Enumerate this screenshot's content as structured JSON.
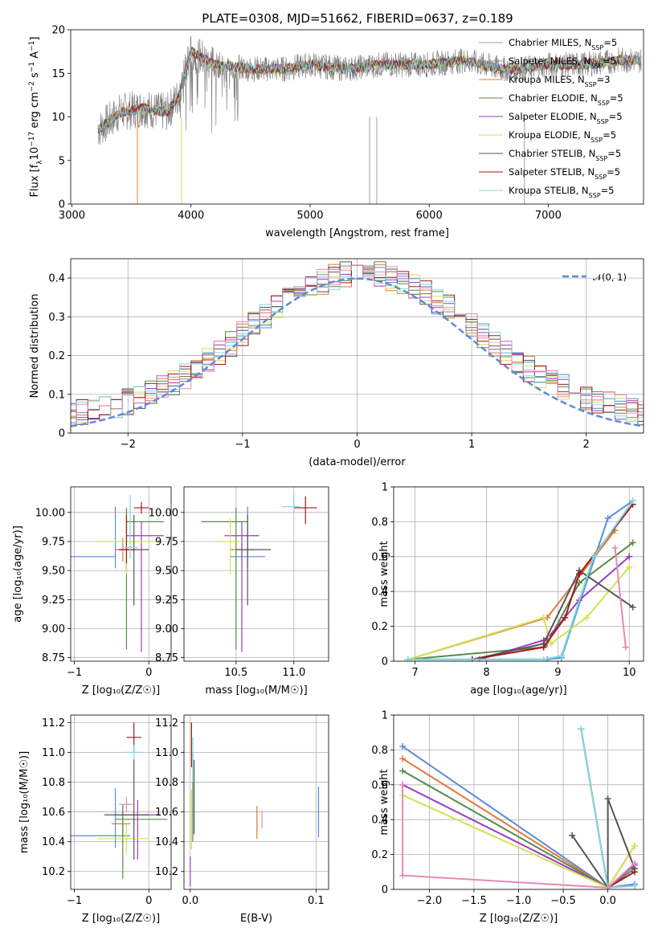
{
  "title": "PLATE=0308, MJD=51662, FIBERID=0637, z=0.189",
  "chart_data": [
    {
      "id": "spectrum",
      "type": "line",
      "xlabel": "wavelength [Angstrom, rest frame]",
      "ylabel_parts": [
        "Flux [f",
        "λ",
        "10",
        "−17",
        " erg cm",
        "−2",
        " s",
        "−1",
        " A",
        "−1",
        "]"
      ],
      "xlim": [
        2990,
        7800
      ],
      "ylim": [
        0,
        20
      ],
      "xticks": [
        3000,
        4000,
        5000,
        6000,
        7000
      ],
      "yticks": [
        0,
        5,
        10,
        15,
        20
      ],
      "grid": false,
      "legend_position": "right",
      "series": [
        {
          "name": "Chabrier MILES, N",
          "sub": "SSP",
          "suffix": "=5",
          "color": "#a0a0a0"
        },
        {
          "name": "Salpeter MILES, N",
          "sub": "SSP",
          "suffix": "=5",
          "color": "#8a8a8a"
        },
        {
          "name": "Kroupa MILES, N",
          "sub": "SSP",
          "suffix": "=3",
          "color": "#e07b39"
        },
        {
          "name": "Chabrier ELODIE, N",
          "sub": "SSP",
          "suffix": "=5",
          "color": "#5a8a4a"
        },
        {
          "name": "Salpeter ELODIE, N",
          "sub": "SSP",
          "suffix": "=5",
          "color": "#9b3dbf"
        },
        {
          "name": "Kroupa ELODIE, N",
          "sub": "SSP",
          "suffix": "=5",
          "color": "#d4e157"
        },
        {
          "name": "Chabrier STELIB, N",
          "sub": "SSP",
          "suffix": "=5",
          "color": "#555555"
        },
        {
          "name": "Salpeter STELIB, N",
          "sub": "SSP",
          "suffix": "=5",
          "color": "#a01a1a"
        },
        {
          "name": "Kroupa STELIB, N",
          "sub": "SSP",
          "suffix": "=5",
          "color": "#80d8e0"
        }
      ],
      "data_continuum": {
        "x": [
          3220,
          3400,
          3600,
          3800,
          3900,
          4000,
          4200,
          4500,
          4800,
          5000,
          5300,
          5600,
          6000,
          6300,
          6600,
          6800,
          7000,
          7300,
          7600,
          7780
        ],
        "y": [
          8.5,
          10.5,
          11.0,
          10.5,
          12.5,
          17.5,
          16.0,
          15.5,
          15.5,
          16.0,
          15.5,
          16.0,
          16.0,
          16.5,
          15.5,
          15.5,
          16.0,
          16.0,
          16.5,
          16.5
        ]
      }
    },
    {
      "id": "residuals",
      "type": "histogram",
      "xlabel": "(data-model)/error",
      "ylabel": "Normed distribution",
      "xlim": [
        -2.5,
        2.5
      ],
      "ylim": [
        0,
        0.45
      ],
      "xticks": [
        -2,
        -1,
        0,
        1,
        2
      ],
      "xtick_labels": [
        "−2",
        "−1",
        "0",
        "1",
        "2"
      ],
      "yticks": [
        0.0,
        0.1,
        0.2,
        0.3,
        0.4
      ],
      "grid": true,
      "legend": [
        {
          "name": "𝒩(0, 1)",
          "color": "#5b8bd9",
          "dashed": true
        }
      ],
      "legend_position": "top-right",
      "gaussian": {
        "mean": 0,
        "sigma": 1
      }
    },
    {
      "id": "age-vs-Z",
      "type": "errorbar",
      "xlabel": "Z [log₁₀(Z/Z☉)]",
      "ylabel": "age  [log₁₀(age/yr)]",
      "xlim": [
        -1.05,
        0.3
      ],
      "ylim": [
        8.72,
        10.22
      ],
      "xticks": [
        -1,
        0
      ],
      "xtick_labels": [
        "−1",
        "0"
      ],
      "yticks": [
        8.75,
        9.0,
        9.25,
        9.5,
        9.75,
        10.0
      ],
      "ytick_labels": [
        "8.75",
        "9.00",
        "9.25",
        "9.50",
        "9.75",
        "10.00"
      ],
      "grid": true,
      "points": [
        {
          "x": -0.45,
          "xerr": [
            0.6,
            0.0
          ],
          "y": 9.62,
          "yerr": [
            0.1,
            0.43
          ],
          "color": "#5b8bd9"
        },
        {
          "x": -0.35,
          "xerr": [
            0.1,
            0.1
          ],
          "y": 9.68,
          "yerr": [
            0.1,
            0.1
          ],
          "color": "#e07b39"
        },
        {
          "x": -0.3,
          "xerr": [
            0.0,
            0.5
          ],
          "y": 9.92,
          "yerr": [
            1.1,
            0.12
          ],
          "color": "#5a8a4a"
        },
        {
          "x": -0.1,
          "xerr": [
            0.2,
            0.3
          ],
          "y": 9.8,
          "yerr": [
            1.0,
            0.12
          ],
          "color": "#9b3dbf"
        },
        {
          "x": -0.3,
          "xerr": [
            0.4,
            0.4
          ],
          "y": 9.75,
          "yerr": [
            0.28,
            0.2
          ],
          "color": "#d4e157"
        },
        {
          "x": -0.2,
          "xerr": [
            0.2,
            0.2
          ],
          "y": 9.68,
          "yerr": [
            0.48,
            0.3
          ],
          "color": "#555555"
        },
        {
          "x": -0.3,
          "xerr": [
            0.1,
            0.12
          ],
          "y": 9.68,
          "yerr": [
            0.12,
            0.3
          ],
          "color": "#a01a1a"
        },
        {
          "x": -0.25,
          "xerr": [
            0.1,
            0.1
          ],
          "y": 9.7,
          "yerr": [
            0.1,
            0.45
          ],
          "color": "#80d8e0"
        },
        {
          "x": -0.1,
          "xerr": [
            0.1,
            0.1
          ],
          "y": 10.04,
          "yerr": [
            0.05,
            0.05
          ],
          "color": "#a01a1a"
        }
      ]
    },
    {
      "id": "age-vs-mass",
      "type": "errorbar",
      "xlabel": "mass [log₁₀(M/M☉)]",
      "ylabel": "",
      "xlim": [
        10.05,
        11.3
      ],
      "ylim": [
        8.72,
        10.22
      ],
      "xticks": [
        10.5,
        11.0
      ],
      "xtick_labels": [
        "10.5",
        "11.0"
      ],
      "yticks": [
        8.75,
        9.0,
        9.25,
        9.5,
        9.75,
        10.0
      ],
      "ytick_labels": [
        "8.75",
        "9.00",
        "9.25",
        "9.50",
        "9.75",
        "10.00"
      ],
      "grid": true,
      "points": [
        {
          "x": 10.6,
          "xerr": [
            0.15,
            0.15
          ],
          "y": 9.62,
          "yerr": [
            0.1,
            0.43
          ],
          "color": "#5b8bd9"
        },
        {
          "x": 10.55,
          "xerr": [
            0.1,
            0.1
          ],
          "y": 9.68,
          "yerr": [
            0.1,
            0.1
          ],
          "color": "#e07b39"
        },
        {
          "x": 10.5,
          "xerr": [
            0.3,
            0.1
          ],
          "y": 9.92,
          "yerr": [
            1.1,
            0.12
          ],
          "color": "#5a8a4a"
        },
        {
          "x": 10.55,
          "xerr": [
            0.15,
            0.15
          ],
          "y": 9.8,
          "yerr": [
            1.0,
            0.12
          ],
          "color": "#9b3dbf"
        },
        {
          "x": 10.45,
          "xerr": [
            0.1,
            0.1
          ],
          "y": 9.75,
          "yerr": [
            0.28,
            0.2
          ],
          "color": "#d4e157"
        },
        {
          "x": 10.6,
          "xerr": [
            0.1,
            0.2
          ],
          "y": 9.68,
          "yerr": [
            0.48,
            0.3
          ],
          "color": "#555555"
        },
        {
          "x": 11.1,
          "xerr": [
            0.1,
            0.1
          ],
          "y": 10.04,
          "yerr": [
            0.14,
            0.1
          ],
          "color": "#a01a1a"
        },
        {
          "x": 11.0,
          "xerr": [
            0.1,
            0.05
          ],
          "y": 10.05,
          "yerr": [
            0.05,
            0.1
          ],
          "color": "#80d8e0"
        }
      ]
    },
    {
      "id": "weight-vs-age",
      "type": "line",
      "xlabel": "age  [log₁₀(age/yr)]",
      "ylabel": "mass weight",
      "xlim": [
        6.7,
        10.2
      ],
      "ylim": [
        0,
        1
      ],
      "xticks": [
        7,
        8,
        9,
        10
      ],
      "yticks": [
        0.0,
        0.2,
        0.4,
        0.6,
        0.8,
        1.0
      ],
      "grid": true,
      "series": [
        {
          "color": "#5b8bd9",
          "x": [
            6.9,
            8.85,
            9.05,
            9.7,
            10.05
          ],
          "y": [
            0.01,
            0.01,
            0.02,
            0.82,
            0.92
          ]
        },
        {
          "color": "#e07b39",
          "x": [
            6.9,
            8.85,
            9.8
          ],
          "y": [
            0.01,
            0.25,
            0.75
          ]
        },
        {
          "color": "#5a8a4a",
          "x": [
            6.9,
            8.8,
            8.85,
            9.3,
            10.05
          ],
          "y": [
            0.01,
            0.08,
            0.1,
            0.45,
            0.68
          ]
        },
        {
          "color": "#9b3dbf",
          "x": [
            7.9,
            8.8,
            8.85,
            9.3,
            10.0
          ],
          "y": [
            0.01,
            0.12,
            0.13,
            0.35,
            0.6
          ]
        },
        {
          "color": "#d4e157",
          "x": [
            6.9,
            8.8,
            8.9,
            9.4,
            10.0
          ],
          "y": [
            0.01,
            0.25,
            0.1,
            0.25,
            0.54
          ]
        },
        {
          "color": "#555555",
          "x": [
            7.8,
            8.8,
            9.3,
            10.05
          ],
          "y": [
            0.01,
            0.1,
            0.52,
            0.31
          ]
        },
        {
          "color": "#a01a1a",
          "x": [
            7.8,
            8.8,
            9.1,
            9.3,
            10.05
          ],
          "y": [
            0.01,
            0.08,
            0.25,
            0.5,
            0.9
          ]
        },
        {
          "color": "#80d8e0",
          "x": [
            6.9,
            8.8,
            9.05,
            9.5,
            10.05
          ],
          "y": [
            0.01,
            0.01,
            0.03,
            0.6,
            0.92
          ]
        },
        {
          "color": "#e58ab6",
          "x": [
            9.8,
            9.95
          ],
          "y": [
            0.65,
            0.08
          ]
        }
      ]
    },
    {
      "id": "mass-vs-Z",
      "type": "errorbar",
      "xlabel": "Z [log₁₀(Z/Z☉)]",
      "ylabel": "mass [log₁₀(M/M☉)]",
      "xlim": [
        -1.05,
        0.3
      ],
      "ylim": [
        10.08,
        11.25
      ],
      "xticks": [
        -1,
        0
      ],
      "xtick_labels": [
        "−1",
        "0"
      ],
      "yticks": [
        10.2,
        10.4,
        10.6,
        10.8,
        11.0,
        11.2
      ],
      "ytick_labels": [
        "10.2",
        "10.4",
        "10.6",
        "10.8",
        "11.0",
        "11.2"
      ],
      "grid": true,
      "points": [
        {
          "x": -0.45,
          "xerr": [
            0.6,
            0.2
          ],
          "y": 10.44,
          "yerr": [
            0.08,
            0.32
          ],
          "color": "#5b8bd9"
        },
        {
          "x": -0.35,
          "xerr": [
            0.15,
            0.1
          ],
          "y": 10.52,
          "yerr": [
            0.1,
            0.1
          ],
          "color": "#e07b39"
        },
        {
          "x": -0.35,
          "xerr": [
            0.1,
            0.6
          ],
          "y": 10.55,
          "yerr": [
            0.4,
            0.1
          ],
          "color": "#5a8a4a"
        },
        {
          "x": -0.15,
          "xerr": [
            0.3,
            0.3
          ],
          "y": 10.58,
          "yerr": [
            0.3,
            0.1
          ],
          "color": "#9b3dbf"
        },
        {
          "x": -0.3,
          "xerr": [
            0.4,
            0.3
          ],
          "y": 10.42,
          "yerr": [
            0.1,
            0.1
          ],
          "color": "#d4e157"
        },
        {
          "x": -0.2,
          "xerr": [
            0.4,
            0.2
          ],
          "y": 10.58,
          "yerr": [
            0.3,
            0.38
          ],
          "color": "#555555"
        },
        {
          "x": -0.2,
          "xerr": [
            0.1,
            0.1
          ],
          "y": 11.1,
          "yerr": [
            0.1,
            0.1
          ],
          "color": "#a01a1a"
        },
        {
          "x": -0.2,
          "xerr": [
            0.1,
            0.1
          ],
          "y": 11.0,
          "yerr": [
            0.05,
            0.05
          ],
          "color": "#80d8e0"
        },
        {
          "x": -0.3,
          "xerr": [
            0.1,
            0.1
          ],
          "y": 10.65,
          "yerr": [
            0.05,
            0.05
          ],
          "color": "#e58ab6"
        }
      ]
    },
    {
      "id": "mass-vs-ebv",
      "type": "errorbar",
      "xlabel": "E(B-V)",
      "ylabel": "",
      "xlim": [
        -0.005,
        0.11
      ],
      "ylim": [
        10.08,
        11.25
      ],
      "xticks": [
        0.0,
        0.1
      ],
      "xtick_labels": [
        "0.0",
        "0.1"
      ],
      "yticks": [
        10.2,
        10.4,
        10.6,
        10.8,
        11.0,
        11.2
      ],
      "ytick_labels": [
        "10.2",
        "10.4",
        "10.6",
        "10.8",
        "11.0",
        "11.2"
      ],
      "grid": true,
      "points": [
        {
          "x": 0.102,
          "y": 10.6,
          "yerr": [
            0.17,
            0.17
          ],
          "color": "#5b8bd9"
        },
        {
          "x": 0.053,
          "y": 10.53,
          "yerr": [
            0.11,
            0.11
          ],
          "color": "#e07b39"
        },
        {
          "x": 0.057,
          "y": 10.55,
          "yerr": [
            0.06,
            0.06
          ],
          "color": "#e58ab6"
        },
        {
          "x": 0.001,
          "y": 10.55,
          "yerr": [
            0.2,
            0.2
          ],
          "color": "#d4e157"
        },
        {
          "x": 0.002,
          "y": 10.7,
          "yerr": [
            0.3,
            0.3
          ],
          "color": "#5a8a4a"
        },
        {
          "x": 0.0,
          "y": 10.2,
          "yerr": [
            0.1,
            0.1
          ],
          "color": "#9b3dbf"
        },
        {
          "x": 0.001,
          "y": 11.05,
          "yerr": [
            0.15,
            0.15
          ],
          "color": "#a01a1a"
        },
        {
          "x": 0.002,
          "y": 10.95,
          "yerr": [
            0.15,
            0.15
          ],
          "color": "#80d8e0"
        },
        {
          "x": 0.003,
          "y": 10.7,
          "yerr": [
            0.25,
            0.25
          ],
          "color": "#555555"
        }
      ]
    },
    {
      "id": "weight-vs-Z",
      "type": "line",
      "xlabel": "Z [log₁₀(Z/Z☉)]",
      "ylabel": "mass weight",
      "xlim": [
        -2.4,
        0.4
      ],
      "ylim": [
        0,
        1
      ],
      "xticks": [
        -2.0,
        -1.5,
        -1.0,
        -0.5,
        0.0
      ],
      "xtick_labels": [
        "−2.0",
        "−1.5",
        "−1.0",
        "−0.5",
        "0.0"
      ],
      "yticks": [
        0.0,
        0.2,
        0.4,
        0.6,
        0.8,
        1.0
      ],
      "grid": true,
      "series": [
        {
          "color": "#5b8bd9",
          "x": [
            -2.3,
            0.0,
            0.3
          ],
          "y": [
            0.82,
            0.01,
            0.03
          ]
        },
        {
          "color": "#e07b39",
          "x": [
            -2.3,
            0.0,
            0.3
          ],
          "y": [
            0.75,
            0.01,
            0.25
          ]
        },
        {
          "color": "#5a8a4a",
          "x": [
            -2.3,
            0.0,
            0.3
          ],
          "y": [
            0.68,
            0.01,
            0.12
          ]
        },
        {
          "color": "#9b3dbf",
          "x": [
            -2.3,
            0.0,
            0.3
          ],
          "y": [
            0.6,
            0.01,
            0.14
          ]
        },
        {
          "color": "#d4e157",
          "x": [
            -2.3,
            0.0,
            0.3
          ],
          "y": [
            0.54,
            0.01,
            0.25
          ]
        },
        {
          "color": "#555555",
          "x": [
            -0.4,
            0.0,
            0.0,
            0.3
          ],
          "y": [
            0.31,
            0.01,
            0.52,
            0.12
          ]
        },
        {
          "color": "#a01a1a",
          "x": [
            -0.3,
            0.0,
            0.3
          ],
          "y": [
            0.92,
            0.01,
            0.1
          ]
        },
        {
          "color": "#80d8e0",
          "x": [
            -0.3,
            0.0,
            0.3
          ],
          "y": [
            0.92,
            0.01,
            0.02
          ]
        },
        {
          "color": "#e58ab6",
          "x": [
            -2.3,
            -2.3,
            0.0,
            0.3
          ],
          "y": [
            0.6,
            0.08,
            0.01,
            0.15
          ]
        }
      ]
    }
  ]
}
